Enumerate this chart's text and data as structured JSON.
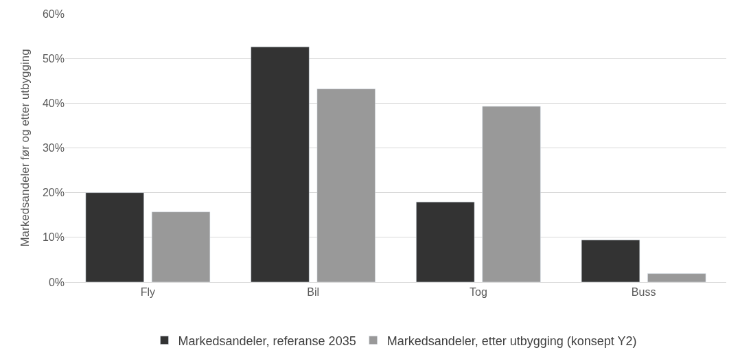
{
  "chart_data": {
    "type": "bar",
    "ylabel": "Markedsandeler før og etter utbygging",
    "categories": [
      "Fly",
      "Bil",
      "Tog",
      "Buss"
    ],
    "series": [
      {
        "name": "Markedsandeler, referanse 2035",
        "color": "#333333",
        "values": [
          20.0,
          52.6,
          17.9,
          9.4
        ]
      },
      {
        "name": "Markedsandeler, etter utbygging (konsept Y2)",
        "color": "#999999",
        "values": [
          15.7,
          43.2,
          39.3,
          1.9
        ]
      }
    ],
    "ylim": [
      0,
      60
    ],
    "yticks": [
      {
        "value": 0,
        "label": "0%"
      },
      {
        "value": 10,
        "label": "10%"
      },
      {
        "value": 20,
        "label": "20%"
      },
      {
        "value": 30,
        "label": "30%"
      },
      {
        "value": 40,
        "label": "40%"
      },
      {
        "value": 50,
        "label": "50%"
      },
      {
        "value": 60,
        "label": "60%"
      }
    ],
    "grid": "y",
    "legend": "bottom"
  }
}
